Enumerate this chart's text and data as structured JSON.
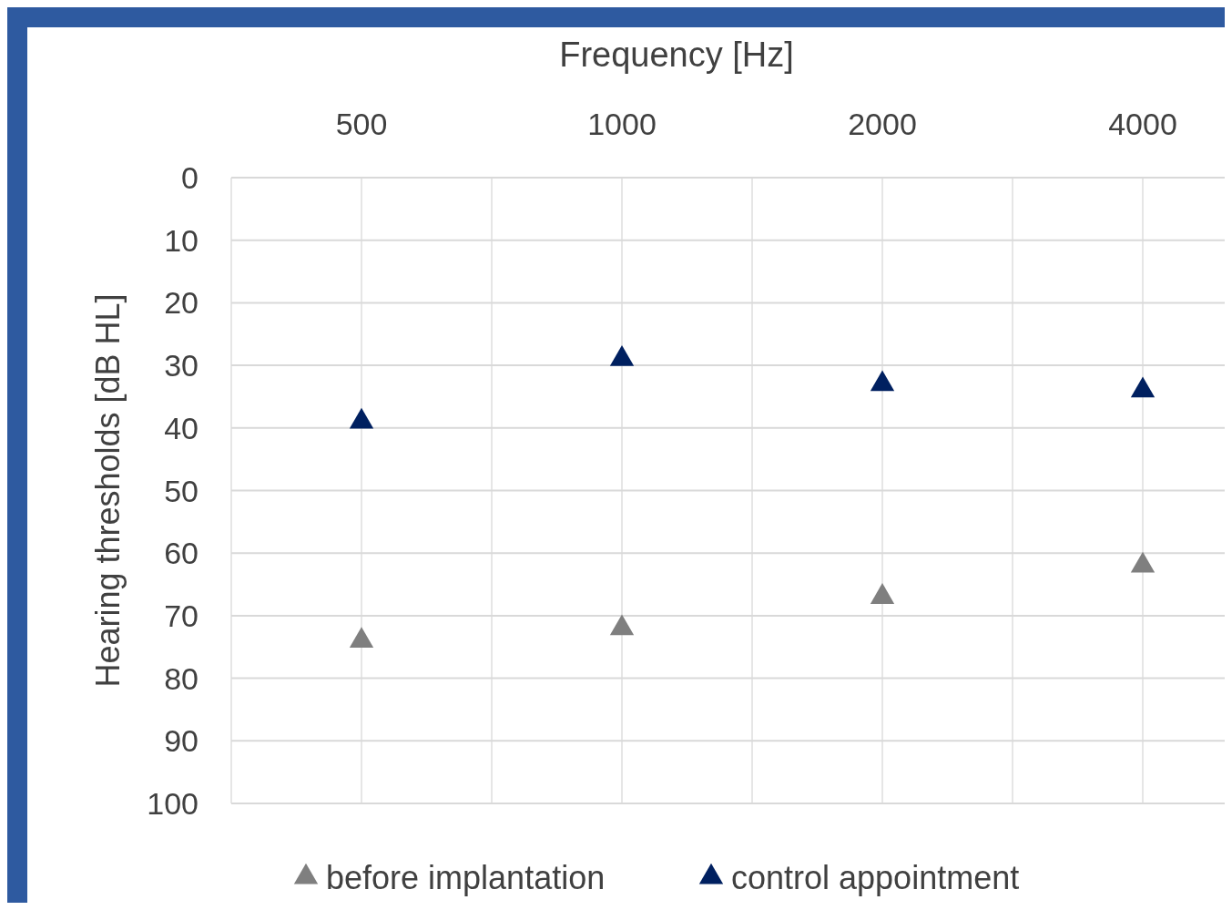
{
  "chart_data": {
    "type": "scatter",
    "xlabel": "Frequency [Hz]",
    "ylabel": "Hearing thresholds [dB HL]",
    "categories": [
      "500",
      "1000",
      "2000",
      "4000"
    ],
    "ylim": [
      100,
      0
    ],
    "yticks": [
      0,
      10,
      20,
      30,
      40,
      50,
      60,
      70,
      80,
      90,
      100
    ],
    "grid": true,
    "legend": "bottom",
    "marker": "triangle",
    "series": [
      {
        "name": "before implantation",
        "color": "#7f7f7f",
        "values": [
          74,
          72,
          67,
          62
        ]
      },
      {
        "name": "control appointment",
        "color": "#002060",
        "values": [
          39,
          29,
          33,
          34
        ]
      }
    ]
  }
}
